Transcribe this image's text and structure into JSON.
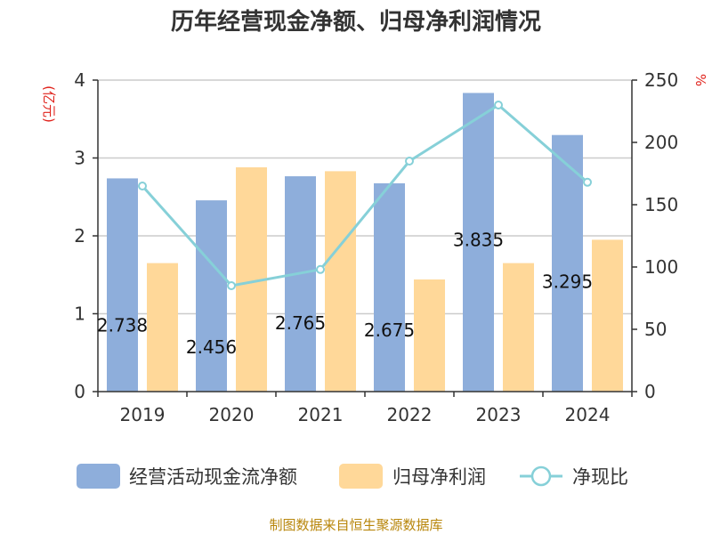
{
  "chart_data": {
    "type": "bar",
    "title": "历年经营现金净额、归母净利润情况",
    "categories": [
      "2019",
      "2020",
      "2021",
      "2022",
      "2023",
      "2024"
    ],
    "series": [
      {
        "name": "经营活动现金流净额",
        "kind": "bar",
        "axis": "left",
        "values": [
          2.738,
          2.456,
          2.765,
          2.675,
          3.835,
          3.295
        ],
        "labels": [
          "2.738",
          "2.456",
          "2.765",
          "2.675",
          "3.835",
          "3.295"
        ],
        "color": "#8eaedb"
      },
      {
        "name": "归母净利润",
        "kind": "bar",
        "axis": "left",
        "values": [
          1.65,
          2.88,
          2.83,
          1.44,
          1.65,
          1.95
        ],
        "color": "#ffd899"
      },
      {
        "name": "净现比",
        "kind": "line",
        "axis": "right",
        "values": [
          165,
          85,
          98,
          185,
          230,
          168
        ],
        "color": "#86d0d8"
      }
    ],
    "yaxis_left": {
      "label": "(亿元)",
      "min": 0,
      "max": 4,
      "ticks": [
        "0",
        "1",
        "2",
        "3",
        "4"
      ]
    },
    "yaxis_right": {
      "label": "%",
      "min": 0,
      "max": 250,
      "ticks": [
        "0",
        "50",
        "100",
        "150",
        "200",
        "250"
      ]
    },
    "grid": true,
    "legend_position": "bottom"
  },
  "source": "制图数据来自恒生聚源数据库",
  "colors": {
    "axis": "#333333",
    "grid": "#cccccc",
    "unit": "#e0221b",
    "source": "#b8860b"
  }
}
